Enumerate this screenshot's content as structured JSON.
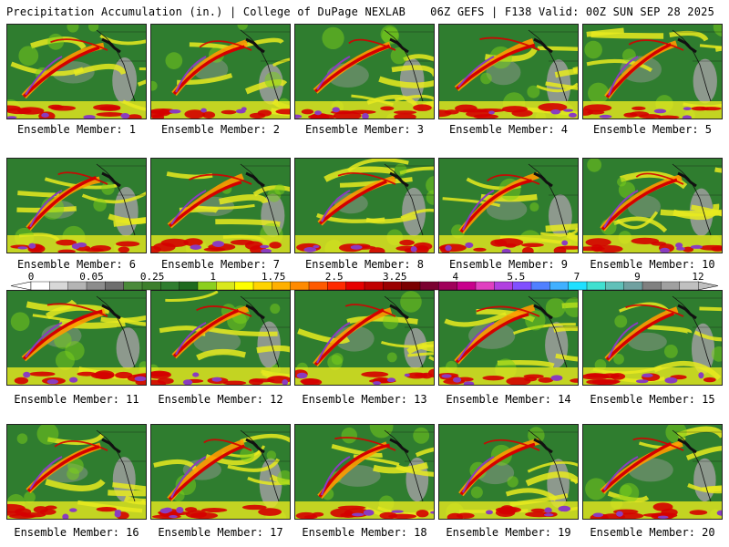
{
  "header": {
    "title": "Precipitation Accumulation (in.) | College of DuPage NEXLAB",
    "run": "06Z GEFS | F138 Valid: 00Z SUN SEP 28 2025"
  },
  "caption_prefix": "Ensemble Member: ",
  "members": [
    1,
    2,
    3,
    4,
    5,
    6,
    7,
    8,
    9,
    10,
    11,
    12,
    13,
    14,
    15,
    16,
    17,
    18,
    19,
    20
  ],
  "legend": {
    "tick_labels": [
      "0",
      "0.05",
      "0.25",
      "1",
      "1.75",
      "2.5",
      "3.25",
      "4",
      "5.5",
      "7",
      "9",
      "12"
    ],
    "colors": [
      "#ffffff",
      "#d8d8d8",
      "#b4b4b4",
      "#8c8c8c",
      "#6e6e6e",
      "#4a8a3a",
      "#3d7f2c",
      "#2f7d2f",
      "#1e6a1e",
      "#8ccf1f",
      "#d9e81c",
      "#ffff00",
      "#ffd400",
      "#ffb000",
      "#ff8a00",
      "#ff5a00",
      "#ff2a00",
      "#e60000",
      "#c00000",
      "#9a0000",
      "#7a0000",
      "#7a0030",
      "#a0005a",
      "#c8008c",
      "#e040c0",
      "#b040e0",
      "#8050ff",
      "#5080ff",
      "#40b0ff",
      "#20e0ff",
      "#40e0d0",
      "#60c0b8",
      "#70a0a0",
      "#808080",
      "#a0a0a0",
      "#c0c0c0"
    ]
  },
  "colors": {
    "land_green": "#2f7d2f",
    "dry_gray": "#9e9e9e",
    "moist_yellow": "#e8ea1f",
    "moderate_orange": "#ff9a00",
    "heavy_red": "#d40000",
    "extreme_purple": "#8a3cc0",
    "coast_black": "#111111",
    "bright_green": "#7ccf1a"
  }
}
